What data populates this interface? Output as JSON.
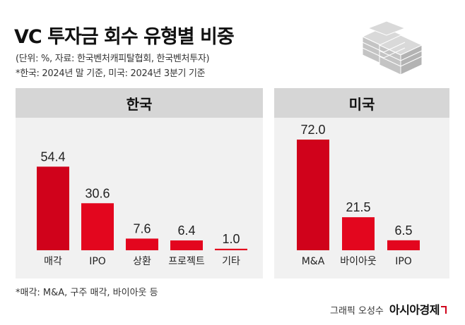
{
  "header": {
    "title": "VC 투자금 회수 유형별 비중",
    "source": "(단위: %, 자료: 한국벤처캐피탈협회, 한국벤처투자)",
    "basis": "*한국: 2024년 말 기준, 미국: 2024년 3분기 기준"
  },
  "chart_data": [
    {
      "type": "bar",
      "title": "한국",
      "categories": [
        "매각",
        "IPO",
        "상환",
        "프로젝트",
        "기타"
      ],
      "values": [
        54.4,
        30.6,
        7.6,
        6.4,
        1.0
      ],
      "value_labels": [
        "54.4",
        "30.6",
        "7.6",
        "6.4",
        "1.0"
      ],
      "ylim": [
        0,
        72
      ],
      "unit": "%",
      "color": "#d0021b"
    },
    {
      "type": "bar",
      "title": "미국",
      "categories": [
        "M&A",
        "바이아웃",
        "IPO"
      ],
      "values": [
        72.0,
        21.5,
        6.5
      ],
      "value_labels": [
        "72.0",
        "21.5",
        "6.5"
      ],
      "ylim": [
        0,
        72
      ],
      "unit": "%",
      "color": "#d0021b"
    }
  ],
  "footer": {
    "note": "*매각: M&A, 구주 매각, 바이아웃 등",
    "credit": "그래픽 오성수",
    "brand": "아시아경제"
  },
  "colors": {
    "bar": "#d0021b",
    "bar_light": "#e3061e",
    "panel_bg": "#f1f1f1",
    "panel_header": "#d6d6d6"
  }
}
